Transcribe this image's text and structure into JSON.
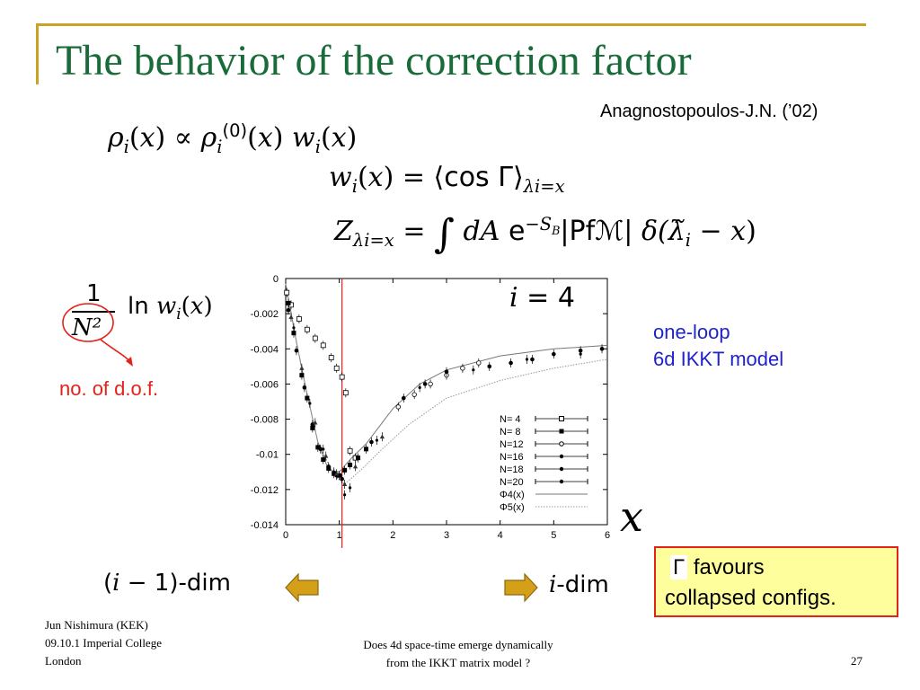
{
  "slide": {
    "title": "The behavior of the correction factor",
    "credit": "Anagnostopoulos-J.N. (’02)",
    "accent_color": "#c9a227",
    "title_color": "#1a6b3a"
  },
  "equations": {
    "eq1": {
      "rho": "ρ",
      "i": "i",
      "x": "x",
      "prop": "∝",
      "sup0": "(0)",
      "w": "w"
    },
    "eq2": {
      "w": "w",
      "i": "i",
      "x": "x",
      "cos": "cos",
      "Gamma": "Γ",
      "sub": "λ",
      "subeq": "=x"
    },
    "eq3": {
      "Z": "Z",
      "sub": "λ",
      "subeq": "=x",
      "integral": "∫",
      "dA": "dA",
      "e": "e",
      "exp": "−S",
      "expsub": "B",
      "pf": "|Pf",
      "M": "ℳ",
      "bar": "|",
      "delta": "δ(",
      "lam": "λ̃",
      "minus": "−",
      "close": ")"
    }
  },
  "annotations": {
    "frac_num": "1",
    "frac_den": "N²",
    "frac_rhs": "ln",
    "dof": "no. of d.o.f.",
    "i4": "= 4",
    "one_loop_l1": "one-loop",
    "one_loop_l2": "6d IKKT model",
    "big_x": "x",
    "dim_left": "(i − 1)-dim",
    "dim_right": "-dim",
    "callout_gamma": "Γ",
    "callout_l1": "favours",
    "callout_l2": "collapsed configs."
  },
  "footer": {
    "author": "Jun Nishimura (KEK)",
    "venue_1": "09.10.1 Imperial College",
    "venue_2": "London",
    "talk_1": "Does 4d space-time emerge dynamically",
    "talk_2": "from the IKKT matrix model ?",
    "page": "27"
  },
  "chart_data": {
    "type": "scatter",
    "xlim": [
      0,
      6
    ],
    "ylim": [
      -0.014,
      0
    ],
    "x_ticks": [
      "0",
      "1",
      "2",
      "3",
      "4",
      "5",
      "6"
    ],
    "y_ticks": [
      "0",
      "-0.002",
      "-0.004",
      "-0.006",
      "-0.008",
      "-0.01",
      "-0.012",
      "-0.014"
    ],
    "vertical_line_x": 1.05,
    "legend_position": "bottom-right",
    "legend": [
      "N= 4",
      "N= 8",
      "N=12",
      "N=16",
      "N=18",
      "N=20",
      "Φ4(x)",
      "Φ5(x)"
    ],
    "series": [
      {
        "name": "N= 4",
        "marker": "square-open",
        "points": [
          [
            0.02,
            -0.0008
          ],
          [
            0.1,
            -0.0015
          ],
          [
            0.25,
            -0.0023
          ],
          [
            0.4,
            -0.0029
          ],
          [
            0.55,
            -0.0034
          ],
          [
            0.7,
            -0.0038
          ],
          [
            0.85,
            -0.0045
          ],
          [
            0.95,
            -0.0051
          ],
          [
            1.05,
            -0.0056
          ],
          [
            1.12,
            -0.0065
          ],
          [
            1.2,
            -0.0098
          ],
          [
            1.3,
            -0.0102
          ]
        ]
      },
      {
        "name": "N= 8",
        "marker": "square-filled",
        "points": [
          [
            0.05,
            -0.0014
          ],
          [
            0.15,
            -0.0031
          ],
          [
            0.3,
            -0.0055
          ],
          [
            0.4,
            -0.0068
          ],
          [
            0.5,
            -0.0085
          ],
          [
            0.6,
            -0.0096
          ],
          [
            0.7,
            -0.0103
          ],
          [
            0.8,
            -0.0108
          ],
          [
            0.9,
            -0.0111
          ],
          [
            1.0,
            -0.0112
          ],
          [
            1.1,
            -0.0109
          ],
          [
            1.2,
            -0.0106
          ],
          [
            1.35,
            -0.0102
          ],
          [
            1.5,
            -0.0097
          ]
        ]
      },
      {
        "name": "N=12",
        "marker": "circle-open",
        "points": [
          [
            2.1,
            -0.0073
          ],
          [
            2.4,
            -0.0066
          ],
          [
            2.7,
            -0.006
          ],
          [
            3.0,
            -0.0055
          ],
          [
            3.3,
            -0.0051
          ],
          [
            3.6,
            -0.0048
          ]
        ]
      },
      {
        "name": "N=16",
        "marker": "circle-filled",
        "points": [
          [
            0.05,
            -0.0018
          ],
          [
            0.2,
            -0.0041
          ],
          [
            0.35,
            -0.0062
          ],
          [
            0.5,
            -0.0083
          ],
          [
            0.65,
            -0.0097
          ],
          [
            0.8,
            -0.0107
          ],
          [
            0.95,
            -0.0112
          ],
          [
            1.05,
            -0.0114
          ],
          [
            1.6,
            -0.0093
          ],
          [
            2.2,
            -0.0068
          ],
          [
            2.6,
            -0.006
          ],
          [
            3.0,
            -0.0053
          ],
          [
            3.8,
            -0.005
          ],
          [
            4.2,
            -0.0048
          ],
          [
            4.6,
            -0.0046
          ],
          [
            5.0,
            -0.0043
          ],
          [
            5.5,
            -0.0041
          ],
          [
            5.9,
            -0.004
          ]
        ]
      },
      {
        "name": "N=18",
        "marker": "triangle",
        "points": [
          [
            0.1,
            -0.0022
          ],
          [
            0.3,
            -0.0051
          ],
          [
            0.55,
            -0.0082
          ],
          [
            0.75,
            -0.0101
          ],
          [
            0.95,
            -0.0111
          ],
          [
            1.1,
            -0.0117
          ],
          [
            1.3,
            -0.0107
          ],
          [
            1.8,
            -0.009
          ]
        ]
      },
      {
        "name": "N=20",
        "marker": "star",
        "points": [
          [
            0.15,
            -0.0028
          ],
          [
            0.45,
            -0.0071
          ],
          [
            0.7,
            -0.0097
          ],
          [
            0.9,
            -0.011
          ],
          [
            1.1,
            -0.0123
          ],
          [
            1.2,
            -0.0119
          ],
          [
            1.7,
            -0.0092
          ],
          [
            2.5,
            -0.0062
          ],
          [
            3.5,
            -0.0052
          ],
          [
            4.5,
            -0.0046
          ],
          [
            5.5,
            -0.0043
          ]
        ]
      },
      {
        "name": "Φ4(x)",
        "style": "solid",
        "points": [
          [
            0,
            -0.0003
          ],
          [
            0.2,
            -0.0036
          ],
          [
            0.4,
            -0.0066
          ],
          [
            0.6,
            -0.0093
          ],
          [
            0.8,
            -0.0109
          ],
          [
            1.0,
            -0.011
          ],
          [
            1.2,
            -0.0103
          ],
          [
            1.5,
            -0.0094
          ],
          [
            2.0,
            -0.0074
          ],
          [
            2.5,
            -0.006
          ],
          [
            3.0,
            -0.0052
          ],
          [
            4.0,
            -0.0044
          ],
          [
            5.0,
            -0.004
          ],
          [
            6.0,
            -0.0038
          ]
        ]
      },
      {
        "name": "Φ5(x)",
        "style": "dotted",
        "points": [
          [
            0,
            -0.0003
          ],
          [
            0.3,
            -0.0052
          ],
          [
            0.6,
            -0.0093
          ],
          [
            0.9,
            -0.0112
          ],
          [
            1.1,
            -0.0117
          ],
          [
            1.4,
            -0.0109
          ],
          [
            1.8,
            -0.0097
          ],
          [
            2.3,
            -0.0083
          ],
          [
            3.0,
            -0.0068
          ],
          [
            4.0,
            -0.0058
          ],
          [
            5.0,
            -0.0051
          ],
          [
            6.0,
            -0.0046
          ]
        ]
      }
    ]
  }
}
